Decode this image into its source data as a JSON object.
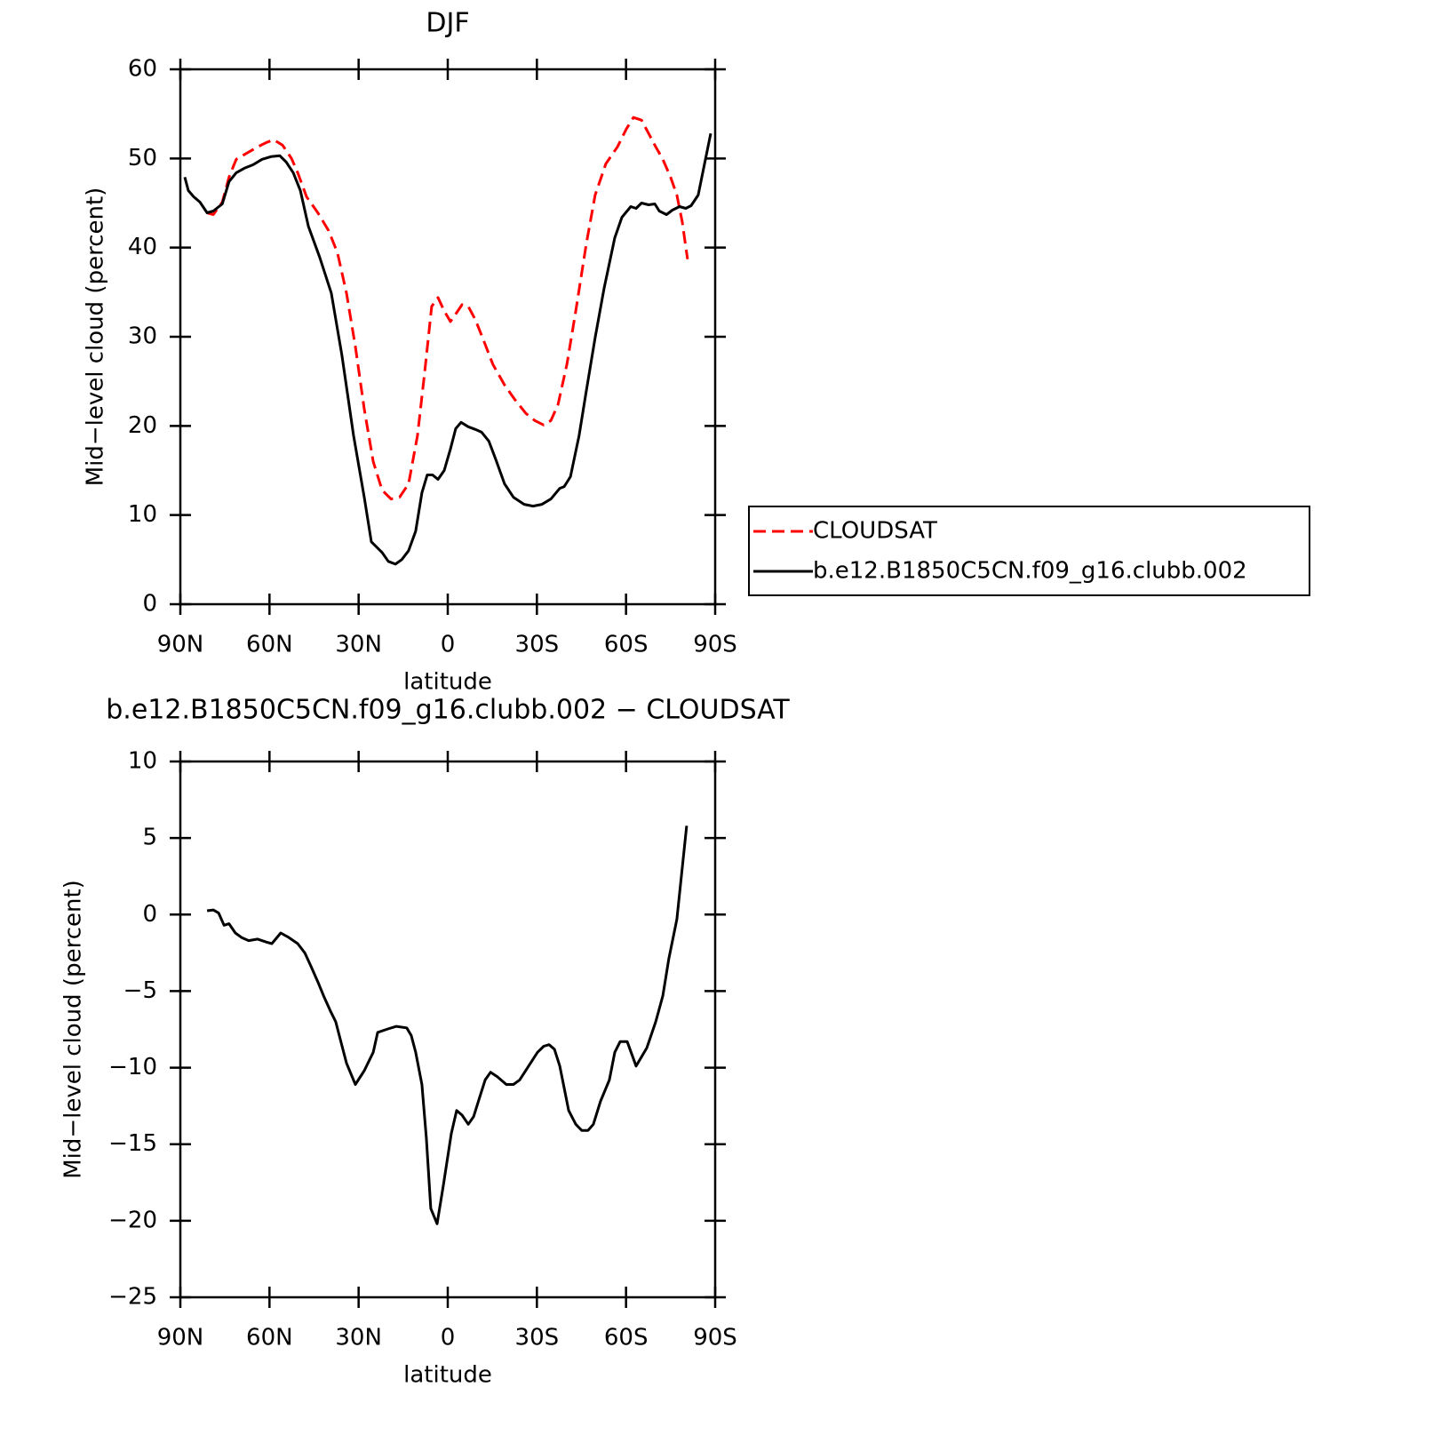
{
  "chart_data": [
    {
      "type": "line",
      "title": "DJF",
      "xlabel": "latitude",
      "ylabel": "Mid−level cloud (percent)",
      "xlim": [
        90,
        -90
      ],
      "ylim": [
        0,
        60
      ],
      "xticks": [
        {
          "value": 90,
          "label": "90N"
        },
        {
          "value": 60,
          "label": "60N"
        },
        {
          "value": 30,
          "label": "30N"
        },
        0,
        {
          "value": -30,
          "label": "30S"
        },
        {
          "value": -60,
          "label": "60S"
        },
        {
          "value": -90,
          "label": "90S"
        }
      ],
      "yticks": [
        0,
        10,
        20,
        30,
        40,
        50,
        60
      ],
      "series": [
        {
          "name": "CLOUDSAT",
          "color": "#ff0000",
          "linestyle": "dashed",
          "x": [
            81.0,
            78.9,
            75.9,
            73.6,
            71.2,
            67.6,
            64.0,
            61.0,
            58.6,
            55.6,
            52.6,
            50.5,
            47.5,
            43.7,
            40.1,
            37.1,
            34.1,
            31.1,
            28.1,
            25.1,
            22.1,
            19.1,
            16.2,
            13.2,
            10.2,
            7.8,
            5.4,
            3.3,
            1.2,
            -0.9,
            -3.0,
            -4.8,
            -6.9,
            -9.3,
            -12.3,
            -15.2,
            -19.1,
            -22.7,
            -26.3,
            -29.3,
            -32.3,
            -34.7,
            -37.1,
            -40.1,
            -43.1,
            -46.6,
            -49.6,
            -53.2,
            -57.1,
            -60.1,
            -62.5,
            -65.2,
            -67.6,
            -70.0,
            -72.4,
            -75.0,
            -77.1,
            -78.9,
            -80.7
          ],
          "values": [
            43.9,
            43.7,
            45.1,
            47.9,
            49.9,
            50.6,
            51.3,
            51.8,
            52.1,
            51.5,
            50.0,
            48.4,
            45.7,
            43.9,
            41.9,
            39.4,
            34.9,
            28.9,
            21.9,
            16.0,
            12.8,
            11.8,
            12.0,
            13.5,
            18.9,
            25.9,
            33.4,
            34.4,
            32.9,
            31.7,
            32.7,
            33.6,
            33.4,
            31.9,
            29.4,
            26.9,
            24.6,
            22.9,
            21.4,
            20.6,
            20.1,
            20.6,
            22.4,
            26.9,
            32.9,
            40.4,
            45.9,
            49.4,
            51.3,
            53.3,
            54.6,
            54.3,
            52.8,
            51.3,
            49.9,
            47.9,
            45.9,
            42.9,
            38.7
          ]
        },
        {
          "name": "b.e12.B1850C5CN.f09_g16.clubb.002",
          "color": "#000000",
          "linestyle": "solid",
          "x": [
            88.5,
            87.3,
            85.5,
            83.4,
            81.0,
            78.9,
            75.9,
            73.6,
            71.2,
            68.5,
            65.5,
            62.5,
            59.5,
            56.5,
            54.4,
            52.0,
            49.6,
            46.9,
            43.1,
            39.2,
            35.6,
            31.7,
            28.1,
            25.7,
            22.1,
            20.0,
            17.6,
            15.5,
            13.2,
            10.8,
            8.7,
            6.9,
            5.1,
            3.3,
            1.2,
            -0.9,
            -2.7,
            -4.5,
            -6.9,
            -9.3,
            -11.4,
            -13.8,
            -16.2,
            -19.1,
            -22.1,
            -25.7,
            -28.7,
            -31.7,
            -34.7,
            -37.7,
            -39.2,
            -41.3,
            -44.2,
            -46.6,
            -49.6,
            -52.6,
            -56.2,
            -58.6,
            -61.6,
            -63.4,
            -65.2,
            -67.6,
            -69.7,
            -71.2,
            -73.6,
            -75.6,
            -78.0,
            -80.1,
            -81.9,
            -84.3,
            -86.1,
            -88.5
          ],
          "values": [
            47.9,
            46.4,
            45.7,
            45.1,
            43.9,
            44.1,
            44.9,
            47.4,
            48.4,
            48.9,
            49.3,
            49.9,
            50.2,
            50.3,
            49.6,
            48.4,
            46.4,
            42.4,
            38.9,
            34.9,
            27.9,
            18.9,
            12.0,
            7.0,
            5.8,
            4.8,
            4.5,
            5.0,
            6.0,
            8.2,
            12.5,
            14.5,
            14.5,
            14.0,
            15.0,
            17.4,
            19.7,
            20.4,
            19.9,
            19.6,
            19.3,
            18.3,
            16.2,
            13.5,
            12.0,
            11.2,
            11.0,
            11.2,
            11.8,
            13.0,
            13.2,
            14.3,
            18.9,
            23.9,
            29.9,
            35.4,
            41.1,
            43.4,
            44.6,
            44.4,
            45.0,
            44.8,
            44.9,
            44.1,
            43.7,
            44.2,
            44.6,
            44.4,
            44.7,
            45.9,
            48.9,
            52.8
          ]
        }
      ]
    },
    {
      "type": "line",
      "title": "b.e12.B1850C5CN.f09_g16.clubb.002 − CLOUDSAT",
      "xlabel": "latitude",
      "ylabel": "Mid−level cloud (percent)",
      "xlim": [
        90,
        -90
      ],
      "ylim": [
        -25,
        10
      ],
      "xticks": [
        {
          "value": 90,
          "label": "90N"
        },
        {
          "value": 60,
          "label": "60N"
        },
        {
          "value": 30,
          "label": "30N"
        },
        0,
        {
          "value": -30,
          "label": "30S"
        },
        {
          "value": -60,
          "label": "60S"
        },
        {
          "value": -90,
          "label": "90S"
        }
      ],
      "yticks": [
        {
          "value": -25,
          "label": "−25"
        },
        {
          "value": -20,
          "label": "−20"
        },
        {
          "value": -15,
          "label": "−15"
        },
        {
          "value": -10,
          "label": "−10"
        },
        {
          "value": -5,
          "label": "−5"
        },
        0,
        5,
        10
      ],
      "series": [
        {
          "color": "#000000",
          "linestyle": "solid",
          "x": [
            81.0,
            78.9,
            77.1,
            75.3,
            73.6,
            71.5,
            69.4,
            67.0,
            64.0,
            61.0,
            59.2,
            56.2,
            53.5,
            50.5,
            48.1,
            46.0,
            43.7,
            41.6,
            39.5,
            37.7,
            36.5,
            34.1,
            31.1,
            28.1,
            25.1,
            23.6,
            20.6,
            17.3,
            13.8,
            12.3,
            10.8,
            8.7,
            7.2,
            5.7,
            3.6,
            1.5,
            -1.2,
            -3.0,
            -4.8,
            -6.9,
            -8.7,
            -10.8,
            -12.6,
            -14.4,
            -16.7,
            -19.7,
            -22.1,
            -24.2,
            -27.2,
            -30.2,
            -32.3,
            -34.1,
            -35.9,
            -37.7,
            -40.7,
            -43.1,
            -45.1,
            -47.2,
            -49.0,
            -51.4,
            -54.4,
            -56.2,
            -58.0,
            -60.4,
            -63.4,
            -67.0,
            -70.0,
            -72.4,
            -74.4,
            -77.1,
            -80.4
          ],
          "values": [
            0.25,
            0.3,
            0.1,
            -0.7,
            -0.6,
            -1.2,
            -1.5,
            -1.7,
            -1.6,
            -1.8,
            -1.9,
            -1.2,
            -1.5,
            -1.9,
            -2.5,
            -3.4,
            -4.4,
            -5.4,
            -6.3,
            -7.0,
            -7.9,
            -9.7,
            -11.1,
            -10.2,
            -9.0,
            -7.7,
            -7.5,
            -7.3,
            -7.4,
            -7.9,
            -9.0,
            -11.1,
            -14.6,
            -19.2,
            -20.2,
            -17.7,
            -14.3,
            -12.8,
            -13.1,
            -13.7,
            -13.2,
            -11.9,
            -10.8,
            -10.3,
            -10.6,
            -11.1,
            -11.1,
            -10.8,
            -9.9,
            -9.0,
            -8.6,
            -8.5,
            -8.8,
            -9.9,
            -12.8,
            -13.7,
            -14.1,
            -14.1,
            -13.7,
            -12.2,
            -10.8,
            -9.0,
            -8.3,
            -8.3,
            -9.9,
            -8.7,
            -7.0,
            -5.3,
            -2.9,
            -0.3,
            5.8
          ]
        }
      ]
    }
  ]
}
